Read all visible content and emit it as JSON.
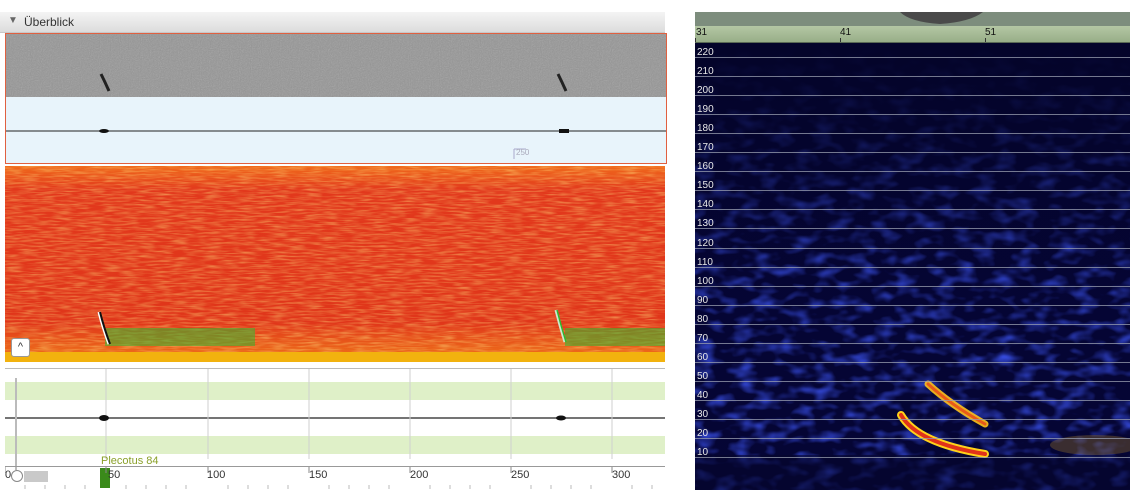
{
  "left_panel": {
    "section_title": "Überblick",
    "disclosure_icon": "triangle-down-icon",
    "ruler_mark": "250",
    "collapse_button_symbol": "^",
    "species_label": "Plecotus 84",
    "x_axis_ticks": [
      "0",
      "50",
      "100",
      "150",
      "200",
      "250",
      "300"
    ],
    "colors": {
      "spectrogram_fill": "#e23a1c",
      "call_highlight": "#2fb82f",
      "species_green": "#3a8a1a",
      "selection_border": "#e06040"
    }
  },
  "right_panel": {
    "time_ticks": [
      "31",
      "41",
      "51"
    ],
    "freq_labels": [
      "220",
      "210",
      "200",
      "190",
      "180",
      "170",
      "160",
      "150",
      "140",
      "130",
      "120",
      "110",
      "100",
      "90",
      "80",
      "70",
      "60",
      "50",
      "40",
      "30",
      "20",
      "10"
    ],
    "colors": {
      "background": "#04042a",
      "axis_band": "#a8bb96"
    }
  }
}
